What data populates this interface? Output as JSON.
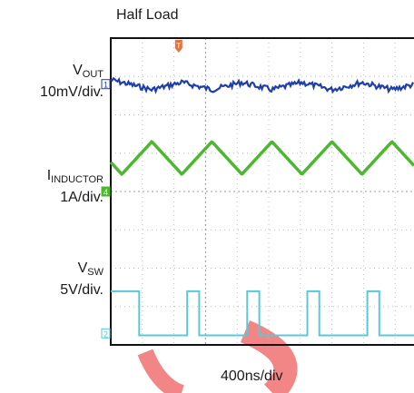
{
  "title": "Half Load",
  "x_axis_label": "400ns/div",
  "channels": [
    {
      "name_main": "V",
      "name_sub": "OUT",
      "scale": "10mV/div.",
      "marker": "1",
      "color": "#1f3fa8"
    },
    {
      "name_main": "I",
      "name_sub": "INDUCTOR",
      "scale": "1A/div.",
      "marker": "4",
      "color": "#4cb82e"
    },
    {
      "name_main": "V",
      "name_sub": "SW",
      "scale": "5V/div.",
      "marker": "2",
      "color": "#5ac8d8"
    }
  ],
  "trigger_marker": "T",
  "trigger_color": "#e8733a",
  "watermark_color": "#f07070",
  "chart_data": {
    "type": "line",
    "title": "Half Load",
    "xlabel": "400ns/div",
    "x_divisions": 10,
    "y_divisions": 8,
    "grid": true,
    "series": [
      {
        "name": "VOUT",
        "scale": "10mV/div.",
        "shape": "noisy-triangle-ripple",
        "period_div": 1.9
      },
      {
        "name": "IINDUCTOR",
        "scale": "1A/div.",
        "shape": "triangle",
        "period_div": 1.9,
        "amplitude_div": 0.9
      },
      {
        "name": "VSW",
        "scale": "5V/div.",
        "shape": "square",
        "period_div": 1.9,
        "amplitude_div": 1.3
      }
    ]
  }
}
